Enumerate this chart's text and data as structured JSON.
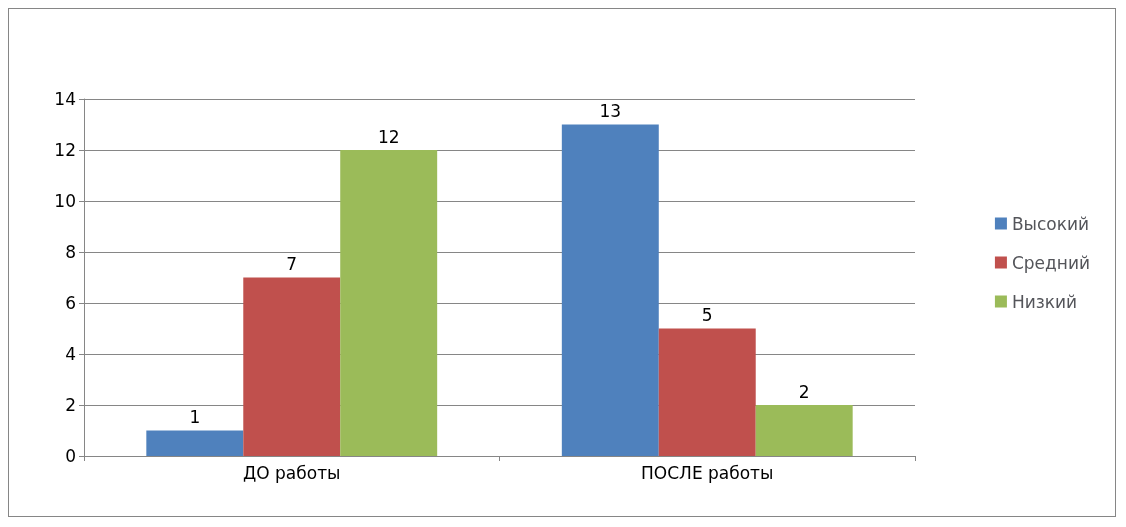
{
  "chart_data": {
    "type": "bar",
    "categories": [
      "ДО работы",
      "ПОСЛЕ работы"
    ],
    "series": [
      {
        "name": "Высокий",
        "color": "#4f81bd",
        "values": [
          1,
          13
        ]
      },
      {
        "name": "Средний",
        "color": "#c0504d",
        "values": [
          7,
          5
        ]
      },
      {
        "name": "Низкий",
        "color": "#9bbb59",
        "values": [
          12,
          2
        ]
      }
    ],
    "ylim": [
      0,
      14
    ],
    "yticks": [
      0,
      2,
      4,
      6,
      8,
      10,
      12,
      14
    ],
    "grid": "y",
    "legend": "right",
    "data_labels": true
  }
}
